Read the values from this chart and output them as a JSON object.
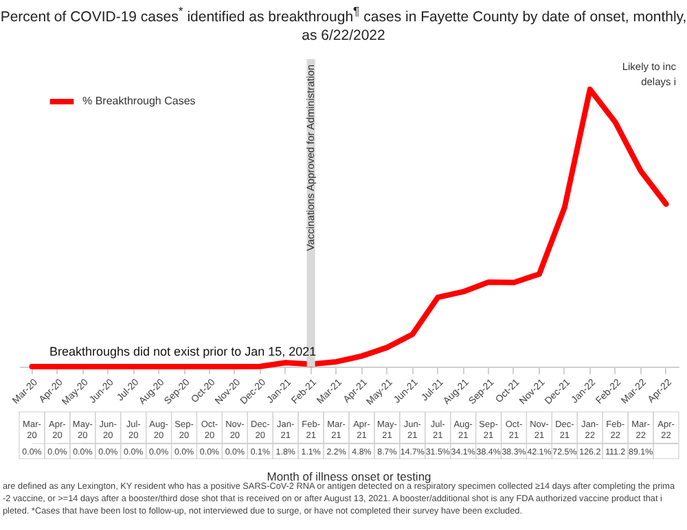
{
  "chart_data": {
    "type": "line",
    "title": "Percent of COVID-19 cases$^{*}$ identified as breakthrough$^{¶}$ cases in Fayette County by date of onset, monthly, as 6/22/2022",
    "categories": [
      "Mar-20",
      "Apr-20",
      "May-20",
      "Jun-20",
      "Jul-20",
      "Aug-20",
      "Sep-20",
      "Oct-20",
      "Nov-20",
      "Dec-20",
      "Jan-21",
      "Feb-21",
      "Mar-21",
      "Apr-21",
      "May-21",
      "Jun-21",
      "Jul-21",
      "Aug-21",
      "Sep-21",
      "Oct-21",
      "Nov-21",
      "Dec-21",
      "Jan-22",
      "Feb-22",
      "Mar-22",
      "Apr-22"
    ],
    "series": [
      {
        "name": "% Breakthrough Cases",
        "color": "#ff0000",
        "values": [
          0,
          0,
          0,
          0,
          0,
          0,
          0,
          0,
          0,
          0.1,
          1.8,
          1.1,
          2.2,
          4.8,
          8.7,
          14.7,
          31.5,
          34.1,
          38.4,
          38.3,
          42.1,
          72.5,
          126.2,
          111.2,
          89.1,
          74
        ],
        "value_labels": [
          "0.0%",
          "0.0%",
          "0.0%",
          "0.0%",
          "0.0%",
          "0.0%",
          "0.0%",
          "0.0%",
          "0.0%",
          "0.1%",
          "1.8%",
          "1.1%",
          "2.2%",
          "4.8%",
          "8.7%",
          "14.7%",
          "31.5%",
          "34.1%",
          "38.4%",
          "38.3%",
          "42.1%",
          "72.5%",
          "126.2",
          "111.2",
          "89.1%",
          null
        ]
      }
    ],
    "ylim": [
      0,
      140
    ],
    "ref_lines": [
      {
        "axis": "x",
        "value": "Feb-21",
        "label": "Vaccinations Approved for Administration",
        "color": "#d9d9d9"
      }
    ],
    "annotations": [
      "Breakthroughs did not exist prior to Jan 15, 2021",
      "Likely to inc delays i",
      "are defined as any Lexington, KY resident who has a positive SARS-CoV-2 RNA or antigen detected on a respiratory specimen collected ≥14 days after completing the prima -2 vaccine, or >=14 days after a booster/third dose shot that is received on or after August 13, 2021. A booster/additional shot is any FDA authorized vaccine product that i pleted. *Cases that have been lost to follow-up, not interviewed due to surge, or have not completed their survey have been excluded.",
      "Month of illness onset or testing"
    ],
    "legend": "top left",
    "grid": false
  }
}
